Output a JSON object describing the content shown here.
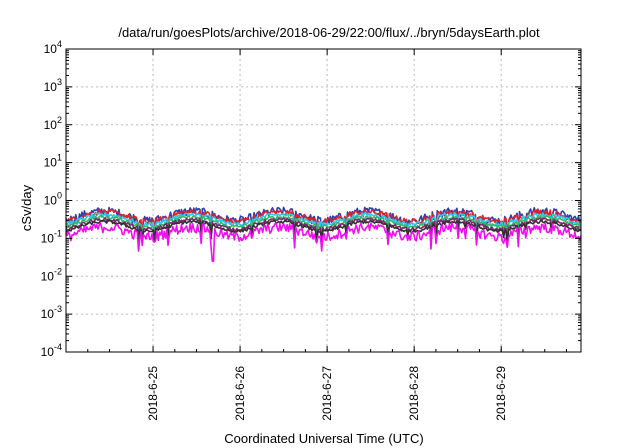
{
  "chart_data": {
    "type": "line",
    "title": "/data/run/goesPlots/archive/2018-06-29/22:00/flux/../bryn/5daysEarth.plot",
    "xlabel": "Coordinated Universal Time (UTC)",
    "ylabel": "cSv/day",
    "yscale": "log",
    "ylim": [
      0.0001,
      10000
    ],
    "xlim": [
      "2018-06-24 00:00",
      "2018-06-29 22:00"
    ],
    "grid": true,
    "y_ticks": [
      {
        "base": "10",
        "exp": "-4"
      },
      {
        "base": "10",
        "exp": "-3"
      },
      {
        "base": "10",
        "exp": "-2"
      },
      {
        "base": "10",
        "exp": "-1"
      },
      {
        "base": "10",
        "exp": "0"
      },
      {
        "base": "10",
        "exp": "1"
      },
      {
        "base": "10",
        "exp": "2"
      },
      {
        "base": "10",
        "exp": "3"
      },
      {
        "base": "10",
        "exp": "4"
      }
    ],
    "x_ticks": [
      "2018-6-25",
      "2018-6-26",
      "2018-6-27",
      "2018-6-28",
      "2018-6-29"
    ],
    "series": [
      {
        "color": "#2b3fb0",
        "base": 0.42,
        "spread": 0.55
      },
      {
        "color": "#e0202a",
        "base": 0.4,
        "spread": 0.35
      },
      {
        "color": "#30c8e8",
        "base": 0.34,
        "spread": 0.25
      },
      {
        "color": "#2fb86a",
        "base": 0.29,
        "spread": 0.22
      },
      {
        "color": "#7a2a6a",
        "base": 0.25,
        "spread": 0.2
      },
      {
        "color": "#303030",
        "base": 0.22,
        "spread": 0.18
      },
      {
        "color": "#f00ff0",
        "base": 0.16,
        "spread": 0.6
      }
    ]
  }
}
